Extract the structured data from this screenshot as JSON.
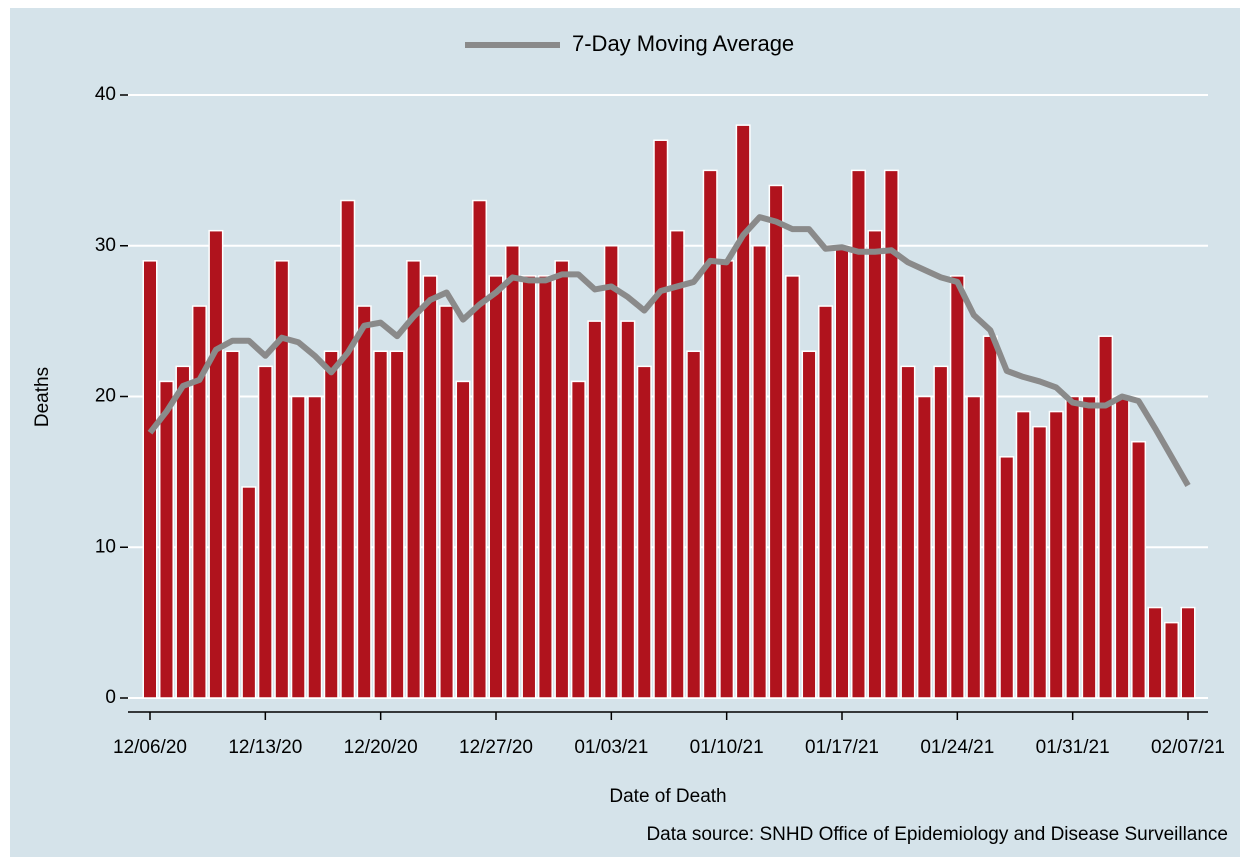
{
  "chart_data": {
    "type": "bar",
    "y_label": "Deaths",
    "x_label": "Date of Death",
    "note": "Data source: SNHD Office of Epidemiology and Disease Surveillance",
    "categories": [
      "12/06/20",
      null,
      null,
      null,
      null,
      null,
      null,
      "12/13/20",
      null,
      null,
      null,
      null,
      null,
      null,
      "12/20/20",
      null,
      null,
      null,
      null,
      null,
      null,
      "12/27/20",
      null,
      null,
      null,
      null,
      null,
      null,
      "01/03/21",
      null,
      null,
      null,
      null,
      null,
      null,
      "01/10/21",
      null,
      null,
      null,
      null,
      null,
      null,
      "01/17/21",
      null,
      null,
      null,
      null,
      null,
      null,
      "01/24/21",
      null,
      null,
      null,
      null,
      null,
      null,
      "01/31/21",
      null,
      null,
      null,
      null,
      null,
      null,
      "02/07/21"
    ],
    "series": [
      {
        "type": "bar",
        "color": "#b0131d",
        "values": [
          29,
          21,
          22,
          26,
          31,
          23,
          14,
          22,
          29,
          20,
          20,
          23,
          33,
          26,
          23,
          23,
          29,
          28,
          26,
          21,
          33,
          28,
          30,
          28,
          28,
          29,
          21,
          25,
          30,
          25,
          22,
          37,
          31,
          23,
          35,
          29,
          38,
          30,
          34,
          28,
          23,
          26,
          30,
          35,
          31,
          35,
          22,
          20,
          22,
          28,
          20,
          24,
          16,
          19,
          18,
          19,
          20,
          20,
          24,
          20,
          17,
          6,
          5,
          6
        ]
      },
      {
        "type": "line",
        "name": "7-Day Moving Average",
        "color": "#8a8a8a",
        "values": [
          17.6,
          19,
          20.7,
          21.1,
          23.1,
          23.7,
          23.7,
          22.7,
          23.9,
          23.6,
          22.7,
          21.6,
          22.9,
          24.7,
          24.9,
          24,
          25.3,
          26.4,
          26.9,
          25.1,
          26.1,
          26.9,
          27.9,
          27.7,
          27.7,
          28.1,
          28.1,
          27.1,
          27.3,
          26.6,
          25.7,
          27,
          27.3,
          27.6,
          29,
          28.9,
          30.7,
          31.9,
          31.6,
          31.1,
          31.1,
          29.8,
          29.9,
          29.6,
          29.6,
          29.7,
          28.9,
          28.4,
          27.9,
          27.6,
          25.4,
          24.4,
          21.7,
          21.3,
          21,
          20.6,
          19.6,
          19.4,
          19.4,
          20,
          19.7,
          17.9,
          16,
          14.1
        ]
      }
    ],
    "ylim": [
      0,
      40
    ],
    "yticks": [
      0,
      10,
      20,
      30,
      40
    ],
    "grid": true,
    "legend": "top"
  }
}
